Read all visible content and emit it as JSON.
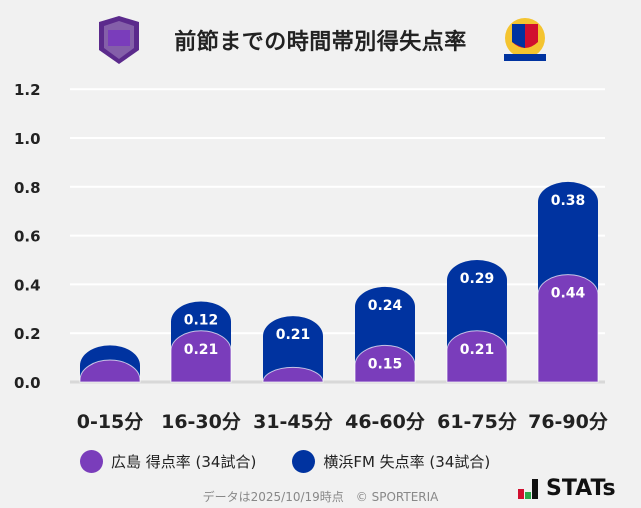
{
  "chart_data": {
    "type": "bar",
    "stacked": true,
    "title": "前節までの時間帯別得失点率",
    "categories": [
      "0-15分",
      "16-30分",
      "31-45分",
      "46-60分",
      "61-75分",
      "76-90分"
    ],
    "series": [
      {
        "name": "広島 得点率 (34試合)",
        "color": "#7a3dbb",
        "values": [
          0.09,
          0.21,
          0.06,
          0.15,
          0.21,
          0.44
        ],
        "labels": [
          "",
          "0.21",
          "",
          "0.15",
          "0.21",
          "0.44"
        ]
      },
      {
        "name": "横浜FM 失点率 (34試合)",
        "color": "#0033a0",
        "values": [
          0.06,
          0.12,
          0.21,
          0.24,
          0.29,
          0.38
        ],
        "labels": [
          "",
          "0.12",
          "0.21",
          "0.24",
          "0.29",
          "0.38"
        ]
      }
    ],
    "yticks": [
      "0.0",
      "0.2",
      "0.4",
      "0.6",
      "0.8",
      "1.0",
      "1.2"
    ],
    "ylim": [
      0,
      1.2
    ],
    "grid": true,
    "legend_position": "bottom"
  },
  "footer": "データは2025/10/19時点　© SPORTERIA",
  "brand": "STATs",
  "logos": {
    "left": "SANFRECCE",
    "right": "Yokohama F·Marinos"
  }
}
